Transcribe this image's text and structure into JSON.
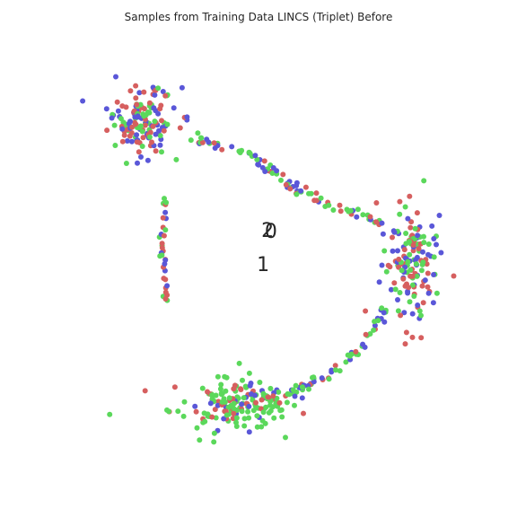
{
  "chart_data": {
    "type": "scatter",
    "title": "Samples from Training Data LINCS (Triplet) Before",
    "xlabel": "",
    "ylabel": "",
    "axes_visible": false,
    "grid": false,
    "legend": "none",
    "annotations": [
      {
        "text": "2",
        "x": -0.05,
        "y": 0.72
      },
      {
        "text": "0",
        "x": 0.05,
        "y": 0.7
      },
      {
        "text": "1",
        "x": -0.18,
        "y": -0.08
      }
    ],
    "colors": {
      "red": "#d65f5f",
      "blue": "#5a57d8",
      "green": "#5bd85b"
    },
    "xlim": [
      -6,
      6
    ],
    "ylim": [
      -5,
      5
    ],
    "clusters": [
      {
        "name": "",
        "center": [
          -3.7,
          3.3
        ],
        "spread": [
          0.9,
          0.75
        ],
        "count": 150,
        "mix": [
          0.33,
          0.33,
          0.34
        ]
      },
      {
        "name": "",
        "center": [
          4.1,
          -0.1
        ],
        "spread": [
          0.7,
          1.3
        ],
        "count": 150,
        "mix": [
          0.34,
          0.3,
          0.36
        ]
      },
      {
        "name": "",
        "center": [
          -1.1,
          -3.4
        ],
        "spread": [
          1.6,
          0.55
        ],
        "count": 160,
        "mix": [
          0.18,
          0.12,
          0.7
        ]
      }
    ],
    "arcs": [
      {
        "path": [
          [
            -2.2,
            2.9
          ],
          [
            -0.5,
            2.5
          ],
          [
            0.5,
            1.8
          ],
          [
            1.8,
            1.3
          ],
          [
            3.2,
            0.9
          ]
        ],
        "count": 90,
        "mix": [
          0.35,
          0.33,
          0.32
        ]
      },
      {
        "path": [
          [
            -1.0,
            -3.3
          ],
          [
            0.5,
            -3.2
          ],
          [
            1.8,
            -2.7
          ],
          [
            2.8,
            -1.9
          ],
          [
            3.4,
            -1.1
          ]
        ],
        "count": 80,
        "mix": [
          0.2,
          0.3,
          0.5
        ]
      },
      {
        "path": [
          [
            -3.05,
            1.6
          ],
          [
            -3.1,
            0.3
          ],
          [
            -2.95,
            -1.0
          ]
        ],
        "count": 35,
        "mix": [
          0.35,
          0.3,
          0.35
        ]
      }
    ]
  }
}
